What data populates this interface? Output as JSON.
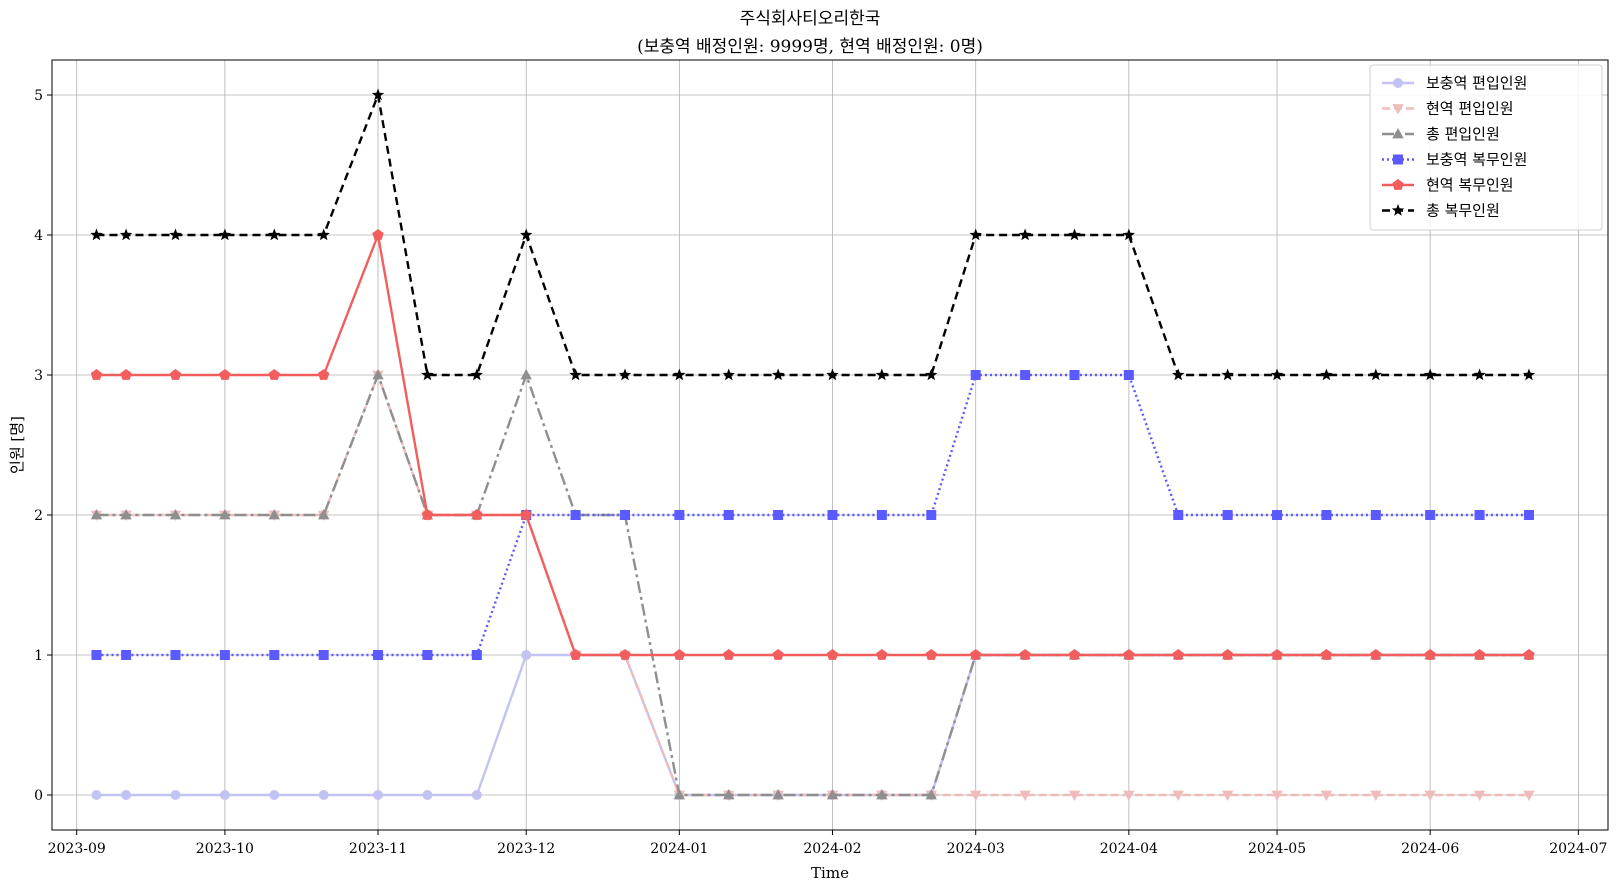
{
  "chart_data": {
    "type": "line",
    "title": "주식회사티오리한국",
    "subtitle": "(보충역 배정인원: 9999명, 현역 배정인원: 0명)",
    "xlabel": "Time",
    "ylabel": "인원 [명]",
    "xlim": [
      "2023-08-27",
      "2024-07-07"
    ],
    "ylim": [
      -0.25,
      5.25
    ],
    "grid": true,
    "legend_position": "top-right",
    "x_ticks": [
      "2023-09",
      "2023-10",
      "2023-11",
      "2023-12",
      "2024-01",
      "2024-02",
      "2024-03",
      "2024-04",
      "2024-05",
      "2024-06",
      "2024-07"
    ],
    "y_ticks": [
      0,
      1,
      2,
      3,
      4,
      5
    ],
    "x": [
      "2023-09-05",
      "2023-09-11",
      "2023-09-21",
      "2023-10-01",
      "2023-10-11",
      "2023-10-21",
      "2023-11-01",
      "2023-11-11",
      "2023-11-21",
      "2023-12-01",
      "2023-12-11",
      "2023-12-21",
      "2024-01-01",
      "2024-01-11",
      "2024-01-21",
      "2024-02-01",
      "2024-02-11",
      "2024-02-21",
      "2024-03-01",
      "2024-03-11",
      "2024-03-21",
      "2024-04-01",
      "2024-04-11",
      "2024-04-21",
      "2024-05-01",
      "2024-05-11",
      "2024-05-21",
      "2024-06-01",
      "2024-06-11",
      "2024-06-21"
    ],
    "series": [
      {
        "name": "보충역 편입인원",
        "color": "#c3c3f3",
        "dash": "",
        "marker": "circle",
        "values": [
          0,
          0,
          0,
          0,
          0,
          0,
          0,
          0,
          0,
          1,
          1,
          1,
          0,
          0,
          0,
          0,
          0,
          0,
          1,
          1,
          1,
          1,
          1,
          1,
          1,
          1,
          1,
          1,
          1,
          1
        ]
      },
      {
        "name": "현역 편입인원",
        "color": "#efbcbc",
        "dash": "8,4",
        "marker": "triangle-down",
        "values": [
          2,
          2,
          2,
          2,
          2,
          2,
          3,
          2,
          2,
          2,
          1,
          1,
          0,
          0,
          0,
          0,
          0,
          0,
          0,
          0,
          0,
          0,
          0,
          0,
          0,
          0,
          0,
          0,
          0,
          0
        ]
      },
      {
        "name": "총 편입인원",
        "color": "#8f8f8f",
        "dash": "12,4,3,4",
        "marker": "triangle-up",
        "values": [
          2,
          2,
          2,
          2,
          2,
          2,
          3,
          2,
          2,
          3,
          2,
          2,
          0,
          0,
          0,
          0,
          0,
          0,
          1,
          1,
          1,
          1,
          1,
          1,
          1,
          1,
          1,
          1,
          1,
          1
        ]
      },
      {
        "name": "보충역 복무인원",
        "color": "#5a5aff",
        "dash": "2,3",
        "marker": "square",
        "values": [
          1,
          1,
          1,
          1,
          1,
          1,
          1,
          1,
          1,
          2,
          2,
          2,
          2,
          2,
          2,
          2,
          2,
          2,
          3,
          3,
          3,
          3,
          2,
          2,
          2,
          2,
          2,
          2,
          2,
          2
        ]
      },
      {
        "name": "현역 복무인원",
        "color": "#f25e5e",
        "dash": "",
        "marker": "pentagon",
        "values": [
          3,
          3,
          3,
          3,
          3,
          3,
          4,
          2,
          2,
          2,
          1,
          1,
          1,
          1,
          1,
          1,
          1,
          1,
          1,
          1,
          1,
          1,
          1,
          1,
          1,
          1,
          1,
          1,
          1,
          1
        ]
      },
      {
        "name": "총 복무인원",
        "color": "#000000",
        "dash": "8,5",
        "marker": "star",
        "values": [
          4,
          4,
          4,
          4,
          4,
          4,
          5,
          3,
          3,
          4,
          3,
          3,
          3,
          3,
          3,
          3,
          3,
          3,
          4,
          4,
          4,
          4,
          3,
          3,
          3,
          3,
          3,
          3,
          3,
          3
        ]
      }
    ]
  }
}
